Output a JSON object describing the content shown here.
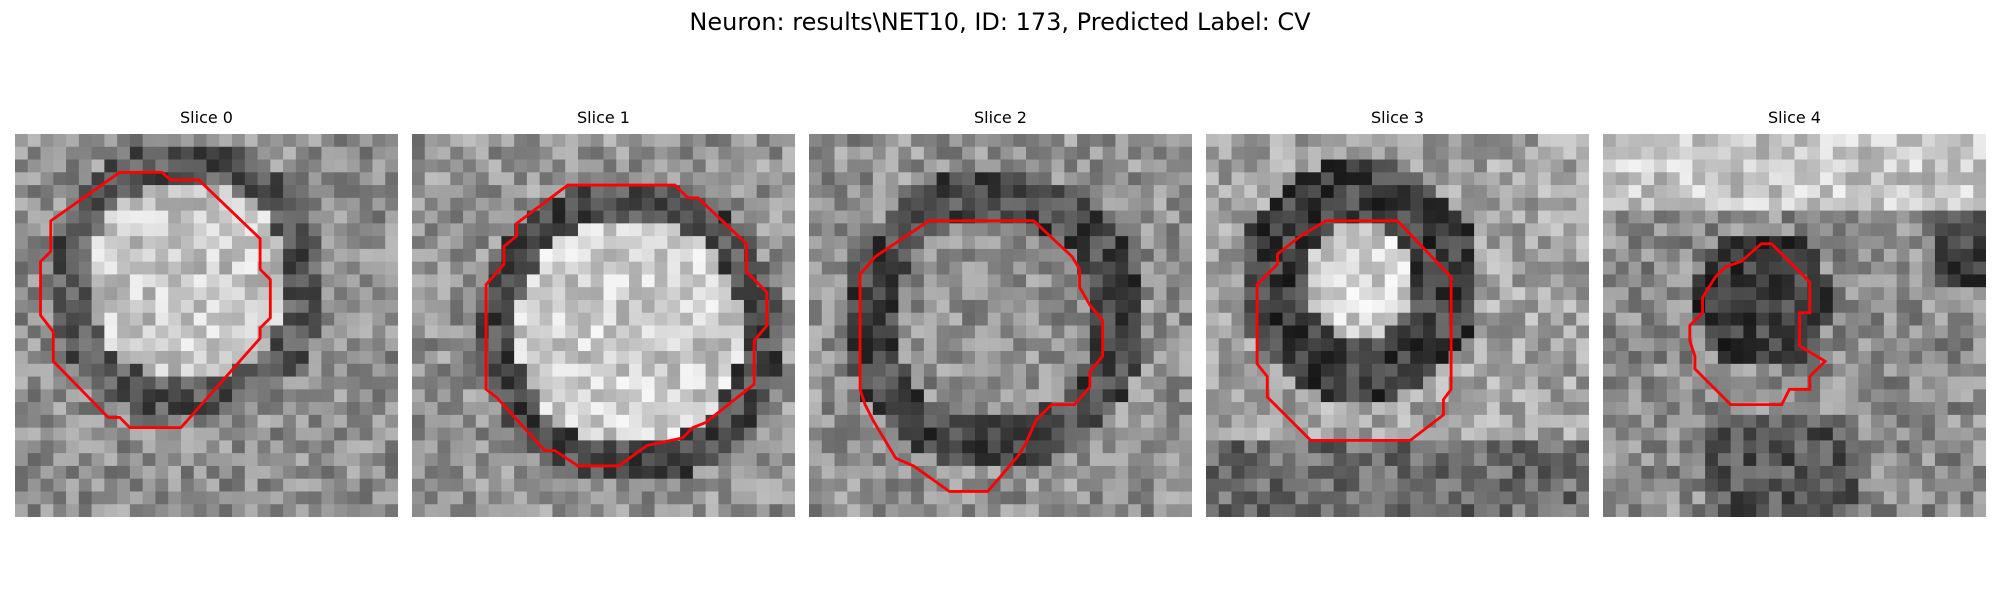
{
  "figure": {
    "title": "Neuron: results\\NET10, ID: 173, Predicted Label: CV",
    "contour_color": "#ff0000",
    "slices": [
      {
        "title": "Slice 0",
        "image": "grayscale-em-patch",
        "mask_description": "red octagonal contour around a bright round cell body"
      },
      {
        "title": "Slice 1",
        "image": "grayscale-em-patch",
        "mask_description": "red contour around a large bright round cell body"
      },
      {
        "title": "Slice 2",
        "image": "grayscale-em-patch",
        "mask_description": "red irregular contour enclosing a textured round region"
      },
      {
        "title": "Slice 3",
        "image": "grayscale-em-patch",
        "mask_description": "red contour around a dark ring with a bright center"
      },
      {
        "title": "Slice 4",
        "image": "grayscale-em-patch",
        "mask_description": "red small irregular contour inside a dark textured region"
      }
    ]
  }
}
